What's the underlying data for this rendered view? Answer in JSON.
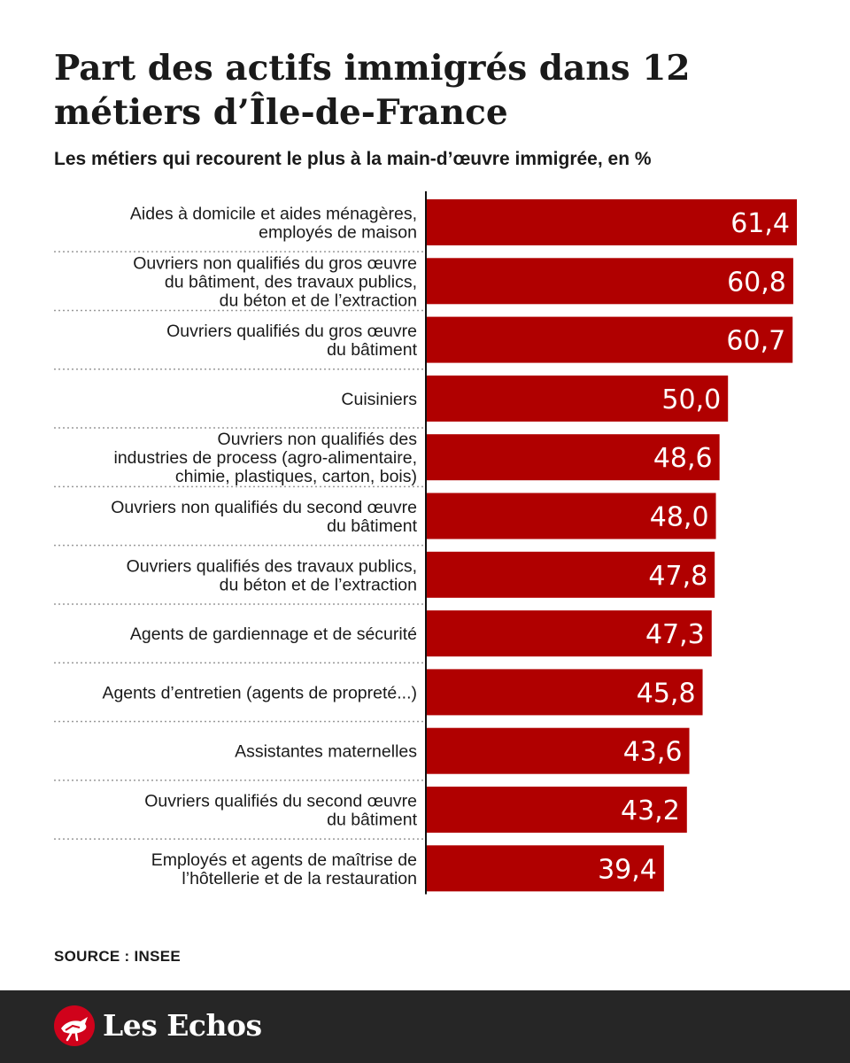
{
  "header": {
    "title": "Part des actifs immigrés dans 12 métiers d’Île-de-France",
    "subtitle": "Les métiers qui recourent le plus à la main-d’œuvre immigrée, en %"
  },
  "footer": {
    "source": "SOURCE : INSEE",
    "brand": "Les Echos"
  },
  "colors": {
    "bar": "#b00000",
    "value_text": "#ffffff",
    "label_text": "#1a1a1a",
    "separator": "#9a9a9a",
    "footer_bg": "#262626"
  },
  "chart_data": {
    "type": "bar",
    "orientation": "horizontal",
    "title": "Part des actifs immigrés dans 12 métiers d’Île-de-France",
    "subtitle": "Les métiers qui recourent le plus à la main-d’œuvre immigrée, en %",
    "xlim": [
      0,
      61.4
    ],
    "grid": false,
    "categories": [
      [
        "Aides à domicile et aides ménagères,",
        "employés de maison"
      ],
      [
        "Ouvriers non qualifiés du gros œuvre",
        "du bâtiment, des travaux publics,",
        "du béton et de l’extraction"
      ],
      [
        "Ouvriers qualifiés du gros œuvre",
        "du bâtiment"
      ],
      [
        "Cuisiniers"
      ],
      [
        "Ouvriers non qualifiés des",
        "industries de process (agro-alimentaire,",
        "chimie, plastiques, carton, bois)"
      ],
      [
        "Ouvriers non qualifiés du second œuvre",
        "du bâtiment"
      ],
      [
        "Ouvriers qualifiés des travaux publics,",
        "du béton et de l’extraction"
      ],
      [
        "Agents de gardiennage et de sécurité"
      ],
      [
        "Agents d’entretien (agents de propreté...)"
      ],
      [
        "Assistantes maternelles"
      ],
      [
        "Ouvriers qualifiés du second œuvre",
        "du bâtiment"
      ],
      [
        "Employés et agents de maîtrise de",
        "l’hôtellerie et de la restauration"
      ]
    ],
    "values": [
      61.4,
      60.8,
      60.7,
      50.0,
      48.6,
      48.0,
      47.8,
      47.3,
      45.8,
      43.6,
      43.2,
      39.4
    ],
    "value_labels": [
      "61,4",
      "60,8",
      "60,7",
      "50,0",
      "48,6",
      "48,0",
      "47,8",
      "47,3",
      "45,8",
      "43,6",
      "43,2",
      "39,4"
    ]
  }
}
